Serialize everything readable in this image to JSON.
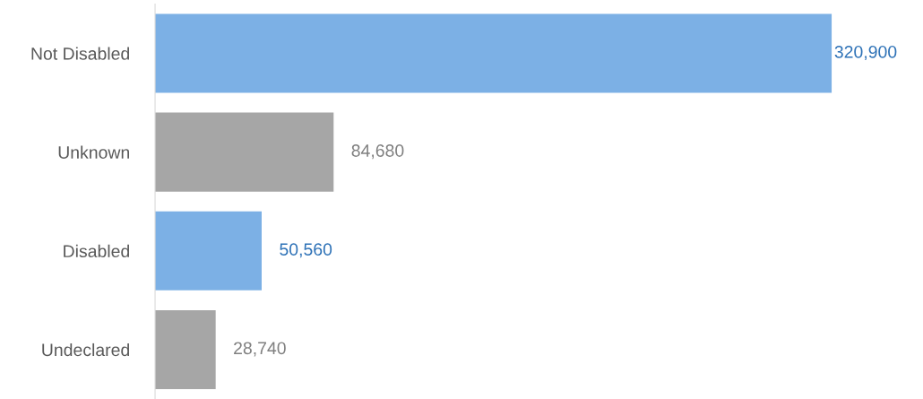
{
  "chart_data": {
    "type": "bar",
    "orientation": "horizontal",
    "categories": [
      "Not Disabled",
      "Unknown",
      "Disabled",
      "Undeclared"
    ],
    "values": [
      320900,
      84680,
      50560,
      28740
    ],
    "colors": [
      "#7cb0e5",
      "#a6a6a6",
      "#7cb0e5",
      "#a6a6a6"
    ],
    "value_labels": [
      "320,900",
      "84,680",
      "50,560",
      "28,740"
    ],
    "grid": false,
    "legend": false
  }
}
